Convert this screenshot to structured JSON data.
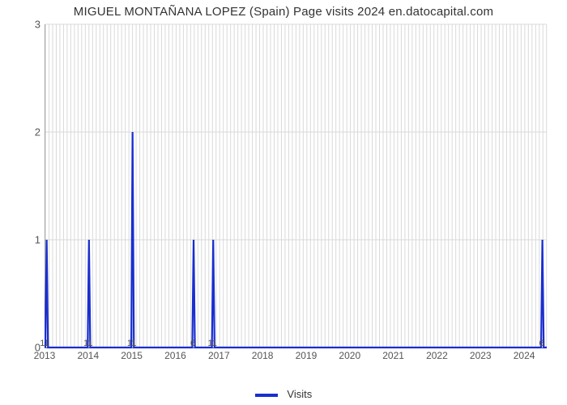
{
  "title": "MIGUEL MONTAÑANA LOPEZ (Spain) Page visits 2024 en.datocapital.com",
  "chart": {
    "type": "line",
    "line_color": "#1a2ecf",
    "line_width": 2.2,
    "background_color": "#ffffff",
    "grid_color": "#d9d9d9",
    "grid_width": 1,
    "x": {
      "min": 2013.0,
      "max": 2024.5,
      "major_ticks": [
        2013,
        2014,
        2015,
        2016,
        2017,
        2018,
        2019,
        2020,
        2021,
        2022,
        2023,
        2024
      ],
      "major_tick_labels": [
        "2013",
        "2014",
        "2015",
        "2016",
        "2017",
        "2018",
        "2019",
        "2020",
        "2021",
        "2022",
        "2023",
        "2024"
      ],
      "tick_fontsize": 12,
      "minor_grid_step": 0.0833
    },
    "y": {
      "min": 0,
      "max": 3,
      "ticks": [
        0,
        1,
        2,
        3
      ],
      "tick_labels": [
        "0",
        "1",
        "2",
        "3"
      ],
      "tick_fontsize": 13
    },
    "minor_labels": [
      {
        "x": 2013.0,
        "text": "11"
      },
      {
        "x": 2014.0,
        "text": "11"
      },
      {
        "x": 2015.0,
        "text": "11"
      },
      {
        "x": 2016.4,
        "text": "6"
      },
      {
        "x": 2016.85,
        "text": "11"
      },
      {
        "x": 2024.4,
        "text": "6"
      }
    ],
    "series": {
      "name": "Visits",
      "points": [
        [
          2013.0,
          0
        ],
        [
          2013.03,
          1
        ],
        [
          2013.06,
          0
        ],
        [
          2013.97,
          0
        ],
        [
          2014.0,
          1
        ],
        [
          2014.03,
          0
        ],
        [
          2014.97,
          0
        ],
        [
          2015.0,
          2
        ],
        [
          2015.03,
          0
        ],
        [
          2016.37,
          0
        ],
        [
          2016.4,
          1
        ],
        [
          2016.43,
          0
        ],
        [
          2016.82,
          0
        ],
        [
          2016.85,
          1
        ],
        [
          2016.88,
          0
        ],
        [
          2024.37,
          0
        ],
        [
          2024.4,
          1
        ],
        [
          2024.43,
          0
        ],
        [
          2024.5,
          0
        ]
      ]
    }
  },
  "legend": {
    "items": [
      {
        "label": "Visits",
        "color": "#1a2ecf"
      }
    ]
  }
}
